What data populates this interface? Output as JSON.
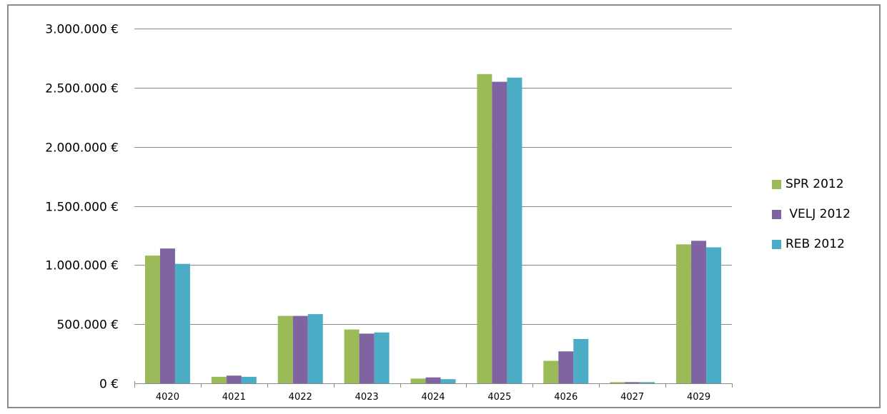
{
  "chart_data": {
    "type": "bar",
    "title": "",
    "xlabel": "",
    "ylabel": "",
    "categories": [
      "4020",
      "4021",
      "4022",
      "4023",
      "4024",
      "4025",
      "4026",
      "4027",
      "4029"
    ],
    "series": [
      {
        "name": "SPR 2012",
        "color": "#9bbb59",
        "values": [
          1080000,
          55000,
          570000,
          455000,
          40000,
          2615000,
          190000,
          10000,
          1175000
        ]
      },
      {
        "name": " VELJ 2012",
        "color": "#8064a2",
        "values": [
          1140000,
          65000,
          570000,
          420000,
          50000,
          2550000,
          270000,
          10000,
          1205000
        ]
      },
      {
        "name": "REB 2012",
        "color": "#4bacc6",
        "values": [
          1010000,
          55000,
          585000,
          430000,
          35000,
          2585000,
          375000,
          10000,
          1150000
        ]
      }
    ],
    "ylim": [
      0,
      3000000
    ],
    "y_ticks": [
      0,
      500000,
      1000000,
      1500000,
      2000000,
      2500000,
      3000000
    ],
    "y_tick_labels": [
      "0 €",
      "500.000 €",
      "1.000.000 €",
      "1.500.000 €",
      "2.000.000 €",
      "2.500.000 €",
      "3.000.000 €"
    ],
    "grid": true,
    "legend_position": "right"
  }
}
